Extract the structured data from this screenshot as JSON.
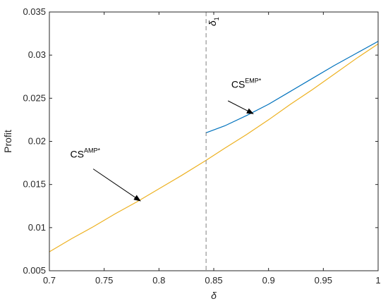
{
  "chart_data": {
    "type": "line",
    "title": "",
    "xlabel": "δ",
    "ylabel": "Profit",
    "xlim": [
      0.7,
      1.0
    ],
    "ylim": [
      0.005,
      0.035
    ],
    "grid": false,
    "x_ticks": [
      0.7,
      0.75,
      0.8,
      0.85,
      0.9,
      0.95,
      1
    ],
    "x_tick_labels": [
      "0.7",
      "0.75",
      "0.8",
      "0.85",
      "0.9",
      "0.95",
      "1"
    ],
    "y_ticks": [
      0.005,
      0.01,
      0.015,
      0.02,
      0.025,
      0.03,
      0.035
    ],
    "y_tick_labels": [
      "0.005",
      "0.01",
      "0.015",
      "0.02",
      "0.025",
      "0.03",
      "0.035"
    ],
    "series": [
      {
        "key": "amp",
        "color": "#EDB120",
        "x": [
          0.7,
          0.72,
          0.74,
          0.76,
          0.78,
          0.8,
          0.82,
          0.843,
          0.86,
          0.88,
          0.9,
          0.92,
          0.94,
          0.96,
          0.98,
          1.0
        ],
        "y": [
          0.0072,
          0.0087,
          0.0101,
          0.0116,
          0.013,
          0.0145,
          0.016,
          0.0178,
          0.0192,
          0.0208,
          0.0225,
          0.0243,
          0.026,
          0.0278,
          0.0296,
          0.0313
        ]
      },
      {
        "key": "emp",
        "color": "#0072BD",
        "x": [
          0.843,
          0.86,
          0.88,
          0.9,
          0.92,
          0.94,
          0.96,
          0.98,
          1.0
        ],
        "y": [
          0.021,
          0.0218,
          0.023,
          0.0243,
          0.0258,
          0.0273,
          0.0288,
          0.0302,
          0.0316
        ]
      }
    ],
    "vertical_line": {
      "x": 0.843,
      "label": "δ",
      "label_sub": "1",
      "color": "#808080"
    },
    "annotations": [
      {
        "key": "emp",
        "text": "CS",
        "superscript": "EMP*",
        "text_pos": [
          0.866,
          0.0262
        ],
        "arrow_from": [
          0.863,
          0.0247
        ],
        "arrow_to": [
          0.886,
          0.0232
        ]
      },
      {
        "key": "amp",
        "text": "CS",
        "superscript": "AMP*",
        "text_pos": [
          0.719,
          0.0181
        ],
        "arrow_from": [
          0.74,
          0.0168
        ],
        "arrow_to": [
          0.783,
          0.0131
        ]
      }
    ]
  }
}
